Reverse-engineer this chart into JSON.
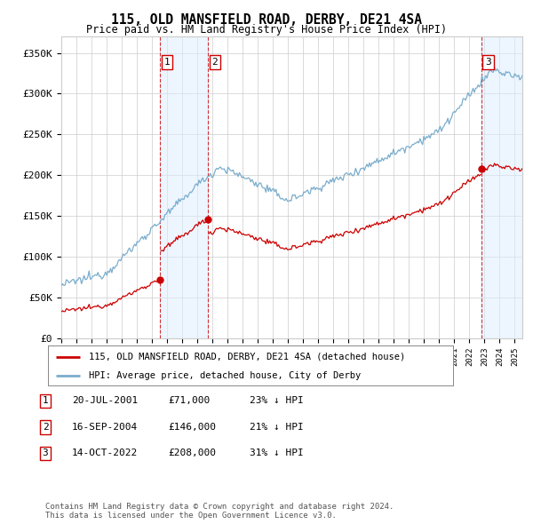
{
  "title": "115, OLD MANSFIELD ROAD, DERBY, DE21 4SA",
  "subtitle": "Price paid vs. HM Land Registry's House Price Index (HPI)",
  "ylim": [
    0,
    370000
  ],
  "yticks": [
    0,
    50000,
    100000,
    150000,
    200000,
    250000,
    300000,
    350000
  ],
  "ytick_labels": [
    "£0",
    "£50K",
    "£100K",
    "£150K",
    "£200K",
    "£250K",
    "£300K",
    "£350K"
  ],
  "sale_color": "#cc0000",
  "hpi_color": "#7aadcc",
  "shade_color": "#ddeeff",
  "background_color": "#ffffff",
  "grid_color": "#cccccc",
  "transactions": [
    {
      "date_num": 2001.55,
      "price": 71000,
      "label": "1"
    },
    {
      "date_num": 2004.71,
      "price": 146000,
      "label": "2"
    },
    {
      "date_num": 2022.79,
      "price": 208000,
      "label": "3"
    }
  ],
  "legend_entries": [
    "115, OLD MANSFIELD ROAD, DERBY, DE21 4SA (detached house)",
    "HPI: Average price, detached house, City of Derby"
  ],
  "table_rows": [
    {
      "num": "1",
      "date": "20-JUL-2001",
      "price": "£71,000",
      "hpi": "23% ↓ HPI"
    },
    {
      "num": "2",
      "date": "16-SEP-2004",
      "price": "£146,000",
      "hpi": "21% ↓ HPI"
    },
    {
      "num": "3",
      "date": "14-OCT-2022",
      "price": "£208,000",
      "hpi": "31% ↓ HPI"
    }
  ],
  "footnote": "Contains HM Land Registry data © Crown copyright and database right 2024.\nThis data is licensed under the Open Government Licence v3.0.",
  "xmin": 1995.0,
  "xmax": 2025.5
}
